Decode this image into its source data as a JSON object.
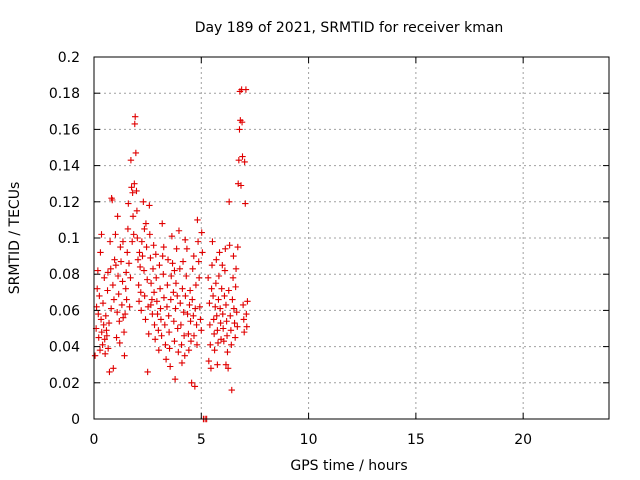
{
  "chart_data": {
    "type": "scatter",
    "title": "Day 189 of 2021, SRMTID for receiver kman",
    "xlabel": "GPS time / hours",
    "ylabel": "SRMTID / TECUs",
    "xlim": [
      0,
      24
    ],
    "ylim": [
      0,
      0.2
    ],
    "x_ticks": [
      "0",
      "5",
      "10",
      "15",
      "20"
    ],
    "y_ticks": [
      "0",
      "0.02",
      "0.04",
      "0.06",
      "0.08",
      "0.1",
      "0.12",
      "0.14",
      "0.16",
      "0.18",
      "0.2"
    ],
    "grid": true,
    "marker": "plus",
    "color": "#e00000",
    "series": [
      {
        "name": "SRMTID",
        "points": [
          [
            0.05,
            0.035
          ],
          [
            0.1,
            0.05
          ],
          [
            0.12,
            0.062
          ],
          [
            0.15,
            0.072
          ],
          [
            0.18,
            0.082
          ],
          [
            0.2,
            0.058
          ],
          [
            0.22,
            0.045
          ],
          [
            0.25,
            0.068
          ],
          [
            0.28,
            0.038
          ],
          [
            0.3,
            0.092
          ],
          [
            0.33,
            0.055
          ],
          [
            0.36,
            0.048
          ],
          [
            0.4,
            0.041
          ],
          [
            0.42,
            0.064
          ],
          [
            0.45,
            0.052
          ],
          [
            0.48,
            0.078
          ],
          [
            0.5,
            0.044
          ],
          [
            0.52,
            0.036
          ],
          [
            0.55,
            0.057
          ],
          [
            0.58,
            0.049
          ],
          [
            0.6,
            0.046
          ],
          [
            0.63,
            0.071
          ],
          [
            0.66,
            0.039
          ],
          [
            0.7,
            0.053
          ],
          [
            0.72,
            0.026
          ],
          [
            0.75,
            0.098
          ],
          [
            0.78,
            0.083
          ],
          [
            0.8,
            0.061
          ],
          [
            0.82,
            0.122
          ],
          [
            0.85,
            0.121
          ],
          [
            0.88,
            0.074
          ],
          [
            0.9,
            0.028
          ],
          [
            0.93,
            0.066
          ],
          [
            0.96,
            0.088
          ],
          [
            1.0,
            0.102
          ],
          [
            1.02,
            0.085
          ],
          [
            1.05,
            0.045
          ],
          [
            1.08,
            0.059
          ],
          [
            1.1,
            0.112
          ],
          [
            1.12,
            0.079
          ],
          [
            1.15,
            0.069
          ],
          [
            1.18,
            0.054
          ],
          [
            1.2,
            0.042
          ],
          [
            1.23,
            0.095
          ],
          [
            1.26,
            0.087
          ],
          [
            1.3,
            0.063
          ],
          [
            1.33,
            0.076
          ],
          [
            1.36,
            0.056
          ],
          [
            1.4,
            0.048
          ],
          [
            1.42,
            0.035
          ],
          [
            1.45,
            0.058
          ],
          [
            1.48,
            0.072
          ],
          [
            1.5,
            0.081
          ],
          [
            1.52,
            0.066
          ],
          [
            1.55,
            0.092
          ],
          [
            1.58,
            0.105
          ],
          [
            1.6,
            0.119
          ],
          [
            1.63,
            0.086
          ],
          [
            1.66,
            0.062
          ],
          [
            1.7,
            0.078
          ],
          [
            1.72,
            0.143
          ],
          [
            1.75,
            0.128
          ],
          [
            1.78,
            0.098
          ],
          [
            1.8,
            0.125
          ],
          [
            1.82,
            0.112
          ],
          [
            1.85,
            0.102
          ],
          [
            1.88,
            0.13
          ],
          [
            1.9,
            0.163
          ],
          [
            1.92,
            0.167
          ],
          [
            1.95,
            0.147
          ],
          [
            1.98,
            0.126
          ],
          [
            2.0,
            0.115
          ],
          [
            2.02,
            0.1
          ],
          [
            2.05,
            0.088
          ],
          [
            2.08,
            0.074
          ],
          [
            2.1,
            0.065
          ],
          [
            2.12,
            0.092
          ],
          [
            2.15,
            0.084
          ],
          [
            2.18,
            0.07
          ],
          [
            2.2,
            0.06
          ],
          [
            2.23,
            0.098
          ],
          [
            2.26,
            0.09
          ],
          [
            2.3,
            0.12
          ],
          [
            2.33,
            0.082
          ],
          [
            2.36,
            0.068
          ],
          [
            2.4,
            0.055
          ],
          [
            2.42,
            0.108
          ],
          [
            2.45,
            0.095
          ],
          [
            2.48,
            0.077
          ],
          [
            2.5,
            0.026
          ],
          [
            2.52,
            0.062
          ],
          [
            2.55,
            0.047
          ],
          [
            2.58,
            0.118
          ],
          [
            2.6,
            0.102
          ],
          [
            2.63,
            0.089
          ],
          [
            2.66,
            0.075
          ],
          [
            2.7,
            0.066
          ],
          [
            2.72,
            0.058
          ],
          [
            2.75,
            0.083
          ],
          [
            2.78,
            0.096
          ],
          [
            2.8,
            0.07
          ],
          [
            2.82,
            0.052
          ],
          [
            2.85,
            0.044
          ],
          [
            2.88,
            0.091
          ],
          [
            2.9,
            0.078
          ],
          [
            2.93,
            0.065
          ],
          [
            2.96,
            0.058
          ],
          [
            3.0,
            0.049
          ],
          [
            3.02,
            0.038
          ],
          [
            3.05,
            0.085
          ],
          [
            3.08,
            0.072
          ],
          [
            3.1,
            0.061
          ],
          [
            3.12,
            0.055
          ],
          [
            3.15,
            0.046
          ],
          [
            3.18,
            0.108
          ],
          [
            3.2,
            0.09
          ],
          [
            3.23,
            0.08
          ],
          [
            3.26,
            0.067
          ],
          [
            3.3,
            0.052
          ],
          [
            3.33,
            0.041
          ],
          [
            3.36,
            0.033
          ],
          [
            3.4,
            0.062
          ],
          [
            3.42,
            0.074
          ],
          [
            3.45,
            0.088
          ],
          [
            3.48,
            0.057
          ],
          [
            3.5,
            0.048
          ],
          [
            3.52,
            0.039
          ],
          [
            3.55,
            0.029
          ],
          [
            3.58,
            0.066
          ],
          [
            3.6,
            0.079
          ],
          [
            3.63,
            0.101
          ],
          [
            3.66,
            0.086
          ],
          [
            3.7,
            0.07
          ],
          [
            3.72,
            0.054
          ],
          [
            3.75,
            0.043
          ],
          [
            3.78,
            0.022
          ],
          [
            3.8,
            0.061
          ],
          [
            3.82,
            0.075
          ],
          [
            3.85,
            0.094
          ],
          [
            3.88,
            0.068
          ],
          [
            3.9,
            0.05
          ],
          [
            3.93,
            0.037
          ],
          [
            3.96,
            0.104
          ],
          [
            4.0,
            0.083
          ],
          [
            4.02,
            0.064
          ],
          [
            4.05,
            0.052
          ],
          [
            4.08,
            0.041
          ],
          [
            4.1,
            0.031
          ],
          [
            4.12,
            0.072
          ],
          [
            4.15,
            0.087
          ],
          [
            4.18,
            0.059
          ],
          [
            4.2,
            0.046
          ],
          [
            4.23,
            0.035
          ],
          [
            4.26,
            0.068
          ],
          [
            4.3,
            0.079
          ],
          [
            4.33,
            0.094
          ],
          [
            4.36,
            0.058
          ],
          [
            4.4,
            0.047
          ],
          [
            4.42,
            0.038
          ],
          [
            4.45,
            0.063
          ],
          [
            4.48,
            0.071
          ],
          [
            4.5,
            0.054
          ],
          [
            4.52,
            0.043
          ],
          [
            4.55,
            0.02
          ],
          [
            4.58,
            0.066
          ],
          [
            4.6,
            0.083
          ],
          [
            4.63,
            0.057
          ],
          [
            4.66,
            0.046
          ],
          [
            4.7,
            0.018
          ],
          [
            4.72,
            0.061
          ],
          [
            4.75,
            0.074
          ],
          [
            4.78,
            0.052
          ],
          [
            4.8,
            0.041
          ],
          [
            4.82,
            0.11
          ],
          [
            4.85,
            0.098
          ],
          [
            4.88,
            0.087
          ],
          [
            4.9,
            0.078
          ],
          [
            4.93,
            0.062
          ],
          [
            4.96,
            0.055
          ],
          [
            5.0,
            0.049
          ],
          [
            5.02,
            0.103
          ],
          [
            5.05,
            0.092
          ],
          [
            5.1,
            0.0
          ],
          [
            5.18,
            0.0
          ],
          [
            5.25,
            0.0
          ],
          [
            5.35,
            0.032
          ],
          [
            5.38,
            0.064
          ],
          [
            5.4,
            0.052
          ],
          [
            5.42,
            0.041
          ],
          [
            5.45,
            0.028
          ],
          [
            5.48,
            0.072
          ],
          [
            5.5,
            0.085
          ],
          [
            5.52,
            0.098
          ],
          [
            5.55,
            0.068
          ],
          [
            5.58,
            0.055
          ],
          [
            5.6,
            0.047
          ],
          [
            5.62,
            0.038
          ],
          [
            5.65,
            0.062
          ],
          [
            5.68,
            0.075
          ],
          [
            5.7,
            0.088
          ],
          [
            5.72,
            0.057
          ],
          [
            5.75,
            0.049
          ],
          [
            5.78,
            0.042
          ],
          [
            5.8,
            0.066
          ],
          [
            5.82,
            0.079
          ],
          [
            5.85,
            0.092
          ],
          [
            5.88,
            0.061
          ],
          [
            5.9,
            0.053
          ],
          [
            5.92,
            0.044
          ],
          [
            5.95,
            0.072
          ],
          [
            5.98,
            0.085
          ],
          [
            6.0,
            0.058
          ],
          [
            6.02,
            0.05
          ],
          [
            6.05,
            0.043
          ],
          [
            6.08,
            0.068
          ],
          [
            6.1,
            0.082
          ],
          [
            6.12,
            0.094
          ],
          [
            6.15,
            0.063
          ],
          [
            6.18,
            0.054
          ],
          [
            6.2,
            0.046
          ],
          [
            6.22,
            0.037
          ],
          [
            6.25,
            0.028
          ],
          [
            6.28,
            0.071
          ],
          [
            6.3,
            0.12
          ],
          [
            6.32,
            0.096
          ],
          [
            6.35,
            0.057
          ],
          [
            6.38,
            0.049
          ],
          [
            6.4,
            0.041
          ],
          [
            6.42,
            0.016
          ],
          [
            6.45,
            0.066
          ],
          [
            6.48,
            0.078
          ],
          [
            6.5,
            0.09
          ],
          [
            6.52,
            0.061
          ],
          [
            6.55,
            0.053
          ],
          [
            6.58,
            0.045
          ],
          [
            6.6,
            0.073
          ],
          [
            6.62,
            0.083
          ],
          [
            6.65,
            0.059
          ],
          [
            6.68,
            0.051
          ],
          [
            6.7,
            0.095
          ],
          [
            6.72,
            0.13
          ],
          [
            6.75,
            0.143
          ],
          [
            6.78,
            0.16
          ],
          [
            6.8,
            0.181
          ],
          [
            6.82,
            0.165
          ],
          [
            6.85,
            0.129
          ],
          [
            6.88,
            0.182
          ],
          [
            6.9,
            0.164
          ],
          [
            6.92,
            0.145
          ],
          [
            6.95,
            0.063
          ],
          [
            6.98,
            0.055
          ],
          [
            7.0,
            0.048
          ],
          [
            7.02,
            0.142
          ],
          [
            7.05,
            0.119
          ],
          [
            7.08,
            0.182
          ],
          [
            7.1,
            0.058
          ],
          [
            7.12,
            0.051
          ],
          [
            7.15,
            0.065
          ],
          [
            0.35,
            0.102
          ],
          [
            0.65,
            0.081
          ],
          [
            1.35,
            0.098
          ],
          [
            2.35,
            0.105
          ],
          [
            2.65,
            0.063
          ],
          [
            3.25,
            0.095
          ],
          [
            3.75,
            0.082
          ],
          [
            4.25,
            0.099
          ],
          [
            4.65,
            0.09
          ],
          [
            5.32,
            0.078
          ],
          [
            5.75,
            0.03
          ],
          [
            6.15,
            0.03
          ]
        ]
      }
    ]
  }
}
